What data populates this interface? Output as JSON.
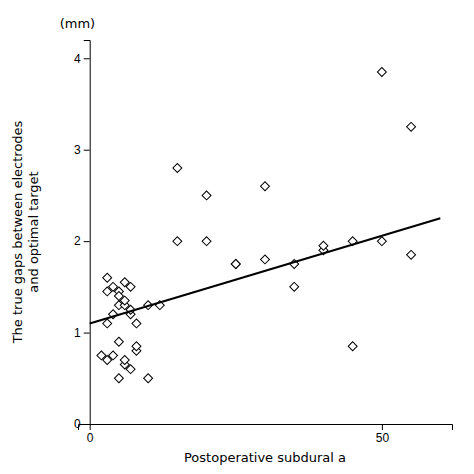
{
  "chart_data": {
    "type": "scatter",
    "xlabel": "Postoperative subdural a",
    "ylabel": [
      "The true gaps between electrodes",
      "and optimal target"
    ],
    "annotation": "(mm)",
    "series": [
      {
        "type": "scatter",
        "marker": "diamond",
        "color": "black",
        "x": [
          2,
          3,
          4,
          5,
          6,
          7,
          3,
          4,
          5,
          6,
          7,
          3,
          4,
          5,
          6,
          7,
          5,
          6,
          7,
          8,
          10,
          12,
          15,
          20,
          25,
          30,
          35,
          40,
          45,
          50,
          55,
          8,
          10,
          15,
          20,
          25,
          30,
          35,
          40,
          45,
          50,
          55,
          3,
          6,
          5,
          8
        ],
        "values": [
          0.75,
          0.7,
          0.75,
          0.9,
          0.65,
          0.6,
          1.45,
          1.5,
          1.45,
          1.55,
          1.5,
          1.1,
          1.2,
          1.3,
          1.3,
          1.2,
          1.4,
          1.35,
          1.25,
          1.1,
          1.3,
          1.3,
          2.8,
          2.0,
          1.75,
          1.8,
          1.75,
          1.9,
          2.0,
          3.85,
          3.25,
          0.8,
          0.5,
          2.0,
          2.5,
          1.75,
          2.6,
          1.5,
          1.95,
          0.85,
          2.0,
          1.85,
          1.6,
          0.7,
          0.5,
          0.85
        ]
      },
      {
        "type": "line",
        "line_style": "solid",
        "color": "black",
        "x": [
          0,
          60
        ],
        "values": [
          1.1,
          2.25
        ]
      }
    ],
    "xlim": [
      -2,
      62
    ],
    "ylim": [
      0,
      4.2
    ],
    "xticks": [
      0,
      50
    ],
    "yticks": [
      0,
      1,
      2,
      3,
      4
    ],
    "grid": false
  }
}
